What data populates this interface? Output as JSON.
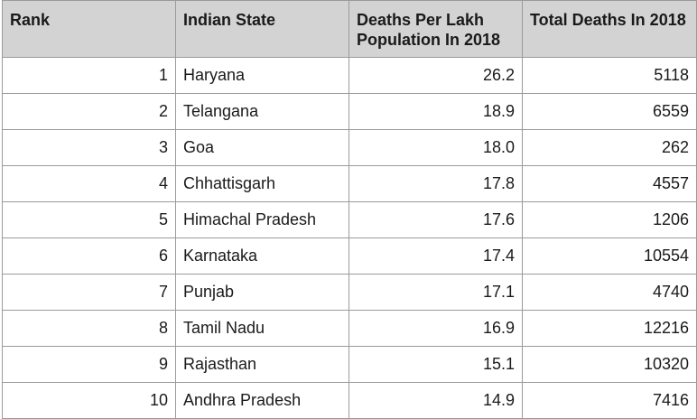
{
  "table": {
    "headers": {
      "rank": "Rank",
      "state": "Indian State",
      "deaths_per_lakh": "Deaths Per Lakh Population In 2018",
      "total_deaths": "Total Deaths In 2018"
    },
    "rows": [
      {
        "rank": "1",
        "state": "Haryana",
        "deaths_per_lakh": "26.2",
        "total_deaths": "5118"
      },
      {
        "rank": "2",
        "state": "Telangana",
        "deaths_per_lakh": "18.9",
        "total_deaths": "6559"
      },
      {
        "rank": "3",
        "state": "Goa",
        "deaths_per_lakh": "18.0",
        "total_deaths": "262"
      },
      {
        "rank": "4",
        "state": "Chhattisgarh",
        "deaths_per_lakh": "17.8",
        "total_deaths": "4557"
      },
      {
        "rank": "5",
        "state": "Himachal Pradesh",
        "deaths_per_lakh": "17.6",
        "total_deaths": "1206"
      },
      {
        "rank": "6",
        "state": "Karnataka",
        "deaths_per_lakh": "17.4",
        "total_deaths": "10554"
      },
      {
        "rank": "7",
        "state": "Punjab",
        "deaths_per_lakh": "17.1",
        "total_deaths": "4740"
      },
      {
        "rank": "8",
        "state": "Tamil Nadu",
        "deaths_per_lakh": "16.9",
        "total_deaths": "12216"
      },
      {
        "rank": "9",
        "state": "Rajasthan",
        "deaths_per_lakh": "15.1",
        "total_deaths": "10320"
      },
      {
        "rank": "10",
        "state": "Andhra Pradesh",
        "deaths_per_lakh": "14.9",
        "total_deaths": "7416"
      }
    ]
  }
}
